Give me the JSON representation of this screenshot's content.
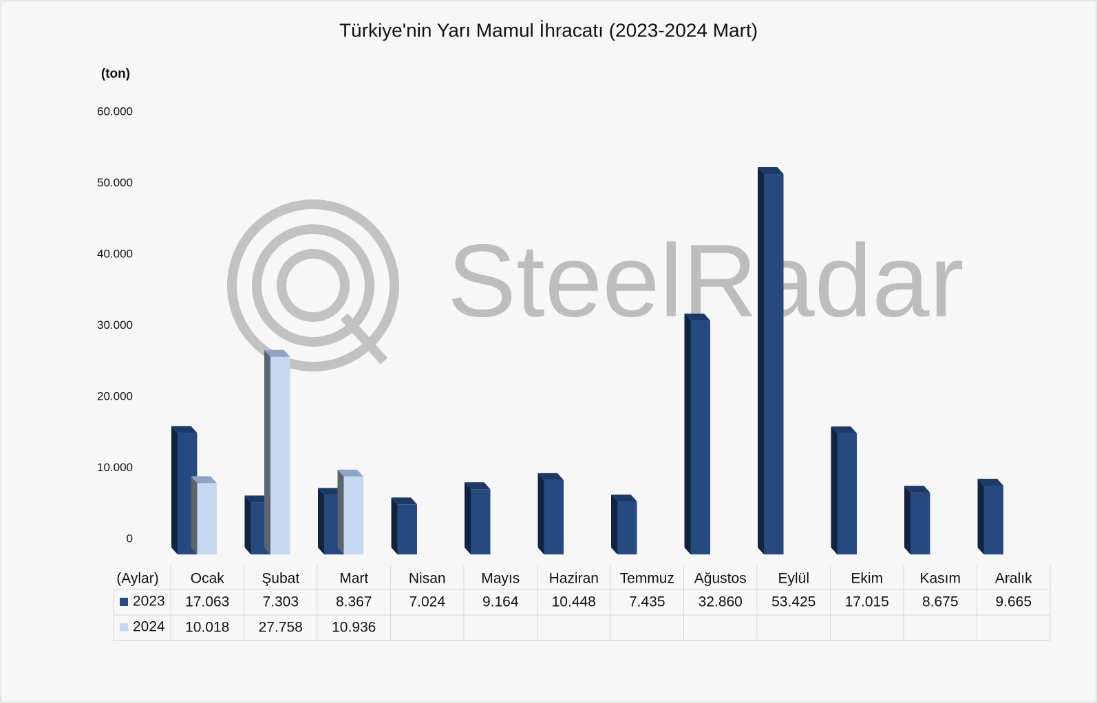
{
  "chart_data": {
    "type": "bar3d",
    "title": "Türkiye'nin Yarı Mamul İhracatı (2023-2024 Mart)",
    "y_label": "(ton)",
    "x_label": "(Aylar)",
    "watermark": "SteelRadar",
    "categories": [
      "Ocak",
      "Şubat",
      "Mart",
      "Nisan",
      "Mayıs",
      "Haziran",
      "Temmuz",
      "Ağustos",
      "Eylül",
      "Ekim",
      "Kasım",
      "Aralık"
    ],
    "series": [
      {
        "name": "2023",
        "color": "#264a80",
        "side_color": "#13233f",
        "top_color": "#1d3a66",
        "values": [
          17063,
          7303,
          8367,
          7024,
          9164,
          10448,
          7435,
          32860,
          53425,
          17015,
          8675,
          9665
        ],
        "value_labels": [
          "17.063",
          "7.303",
          "8.367",
          "7.024",
          "9.164",
          "10.448",
          "7.435",
          "32.860",
          "53.425",
          "17.015",
          "8.675",
          "9.665"
        ]
      },
      {
        "name": "2024",
        "color": "#c5d8ef",
        "side_color": "#5b6570",
        "top_color": "#8ea4c4",
        "values": [
          10018,
          27758,
          10936,
          null,
          null,
          null,
          null,
          null,
          null,
          null,
          null,
          null
        ],
        "value_labels": [
          "10.018",
          "27.758",
          "10.936",
          null,
          null,
          null,
          null,
          null,
          null,
          null,
          null,
          null
        ]
      }
    ],
    "ylim": [
      0,
      60000
    ],
    "yticks": [
      0,
      {
        "value": 10000,
        "label": "10.000"
      },
      {
        "value": 20000,
        "label": "20.000"
      },
      {
        "value": 30000,
        "label": "30.000"
      },
      {
        "value": 40000,
        "label": "40.000"
      },
      {
        "value": 50000,
        "label": "50.000"
      },
      {
        "value": 60000,
        "label": "60.000"
      }
    ],
    "grid": false
  }
}
